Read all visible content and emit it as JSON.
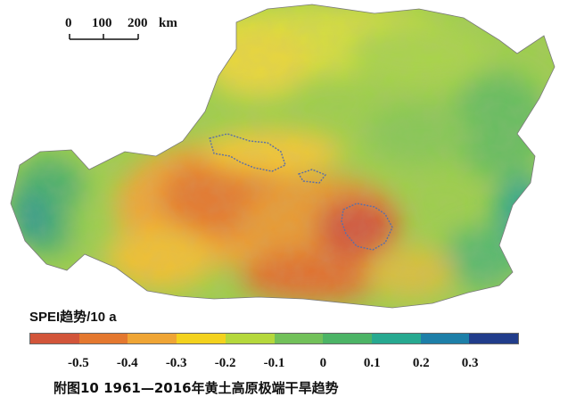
{
  "scale_bar": {
    "labels": [
      "0",
      "100",
      "200"
    ],
    "unit": "km"
  },
  "legend": {
    "title": "SPEI趋势/10 a",
    "colors": [
      "#d2553a",
      "#e4782f",
      "#efa535",
      "#f3d21e",
      "#b5d83c",
      "#72c15a",
      "#4cb466",
      "#27a990",
      "#1d7fa8",
      "#213d8b"
    ],
    "tick_labels": [
      "-0.5",
      "-0.4",
      "-0.3",
      "-0.2",
      "-0.1",
      "0",
      "0.1",
      "0.2",
      "0.3"
    ]
  },
  "caption": "附图10 1961—2016年黄土高原极端干旱趋势"
}
